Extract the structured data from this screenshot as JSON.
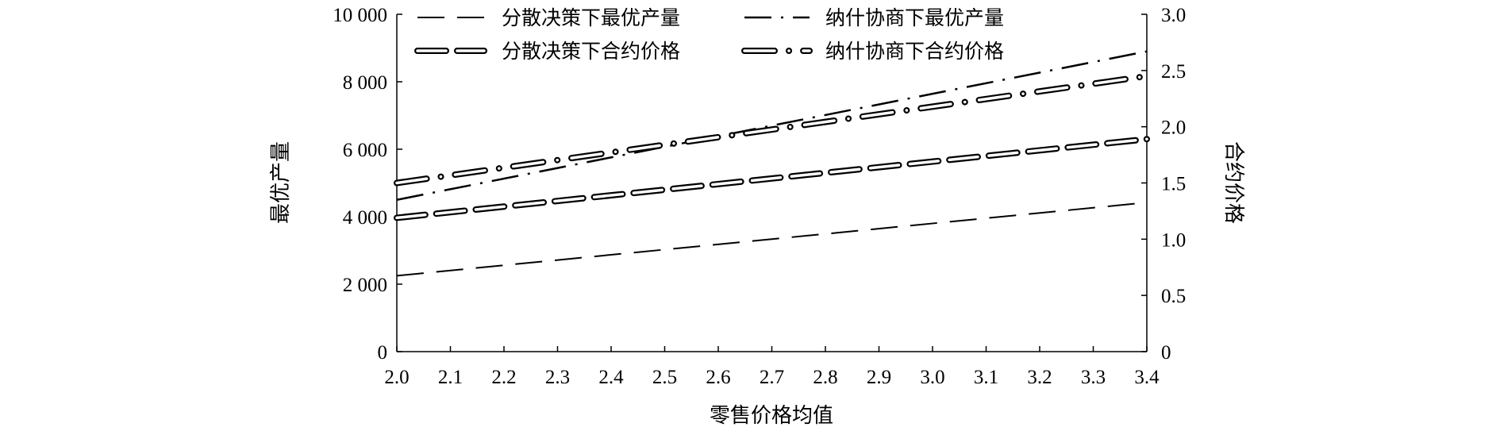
{
  "chart_data": {
    "type": "line",
    "title": "",
    "xlabel": "零售价格均值",
    "ylabel": "最优产量",
    "y2label": "合约价格",
    "xlim": [
      2.0,
      3.4
    ],
    "ylim": [
      0,
      10000
    ],
    "y2lim": [
      0,
      3.0
    ],
    "x_ticks": [
      "2.0",
      "2.1",
      "2.2",
      "2.3",
      "2.4",
      "2.5",
      "2.6",
      "2.7",
      "2.8",
      "2.9",
      "3.0",
      "3.1",
      "3.2",
      "3.3",
      "3.4"
    ],
    "y_ticks": [
      "0",
      "2 000",
      "4 000",
      "6 000",
      "8 000",
      "10 000"
    ],
    "y2_ticks": [
      "0",
      "0.5",
      "1.0",
      "1.5",
      "2.0",
      "2.5",
      "3.0"
    ],
    "grid": false,
    "legend_position": "top",
    "series": [
      {
        "name": "分散决策下最优产量",
        "axis": "left",
        "style": "dashed",
        "x": [
          2.0,
          3.4
        ],
        "y": [
          2250,
          4420
        ]
      },
      {
        "name": "纳什协商下最优产量",
        "axis": "left",
        "style": "dash-dot",
        "x": [
          2.0,
          3.4
        ],
        "y": [
          4500,
          8900
        ]
      },
      {
        "name": "分散决策下合约价格",
        "axis": "right",
        "style": "double-dashed",
        "x": [
          2.0,
          3.4
        ],
        "y": [
          1.19,
          1.89
        ]
      },
      {
        "name": "纳什协商下合约价格",
        "axis": "right",
        "style": "double-dash-dot",
        "x": [
          2.0,
          3.4
        ],
        "y": [
          1.5,
          2.45
        ]
      }
    ]
  }
}
